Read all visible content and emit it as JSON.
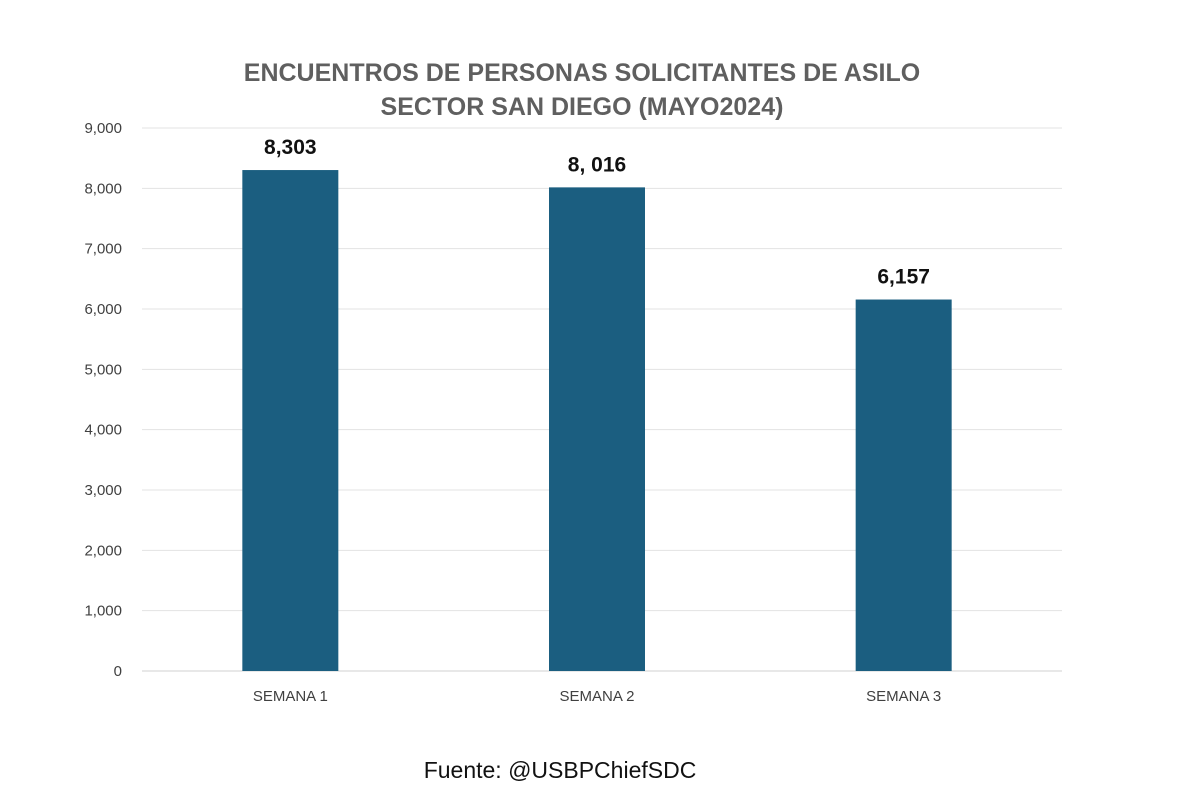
{
  "chart_data": {
    "type": "bar",
    "title_lines": [
      "ENCUENTROS DE PERSONAS SOLICITANTES DE ASILO",
      "SECTOR SAN DIEGO (MAYO2024)"
    ],
    "categories": [
      "SEMANA 1",
      "SEMANA 2",
      "SEMANA 3"
    ],
    "values": [
      8303,
      8016,
      6157
    ],
    "value_labels": [
      "8,303",
      "8, 016",
      "6,157"
    ],
    "ylim": [
      0,
      9000
    ],
    "yticks": [
      0,
      1000,
      2000,
      3000,
      4000,
      5000,
      6000,
      7000,
      8000,
      9000
    ],
    "ytick_labels": [
      "0",
      "1,000",
      "2,000",
      "3,000",
      "4,000",
      "5,000",
      "6,000",
      "7,000",
      "8,000",
      "9,000"
    ],
    "grid": true,
    "legend": "none",
    "bar_color": "#1b5e80"
  },
  "source": "Fuente: @USBPChiefSDC"
}
